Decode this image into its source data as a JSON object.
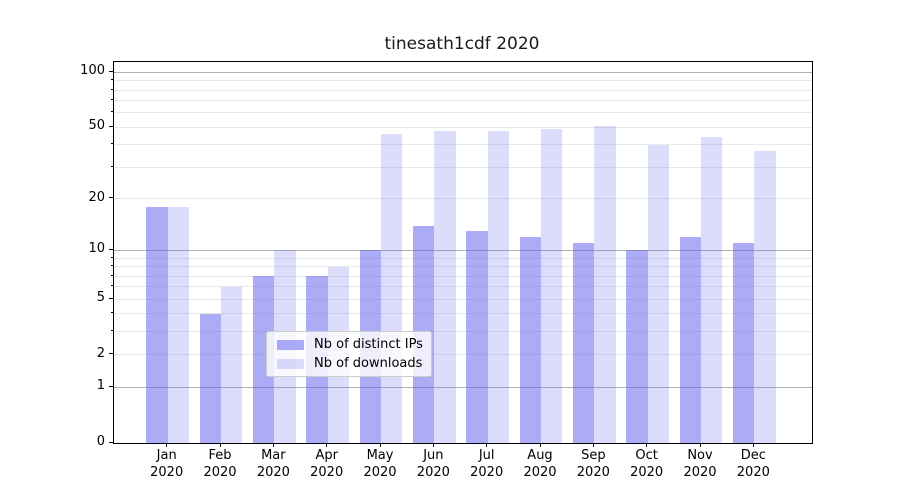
{
  "chart_data": {
    "type": "bar",
    "title": "tinesath1cdf 2020",
    "x": [
      "Jan 2020",
      "Feb 2020",
      "Mar 2020",
      "Apr 2020",
      "May 2020",
      "Jun 2020",
      "Jul 2020",
      "Aug 2020",
      "Sep 2020",
      "Oct 2020",
      "Nov 2020",
      "Dec 2020"
    ],
    "series": [
      {
        "name": "Nb of distinct IPs",
        "color": "rgba(102,102,238,0.55)",
        "values": [
          18,
          4,
          7,
          7,
          10,
          14,
          13,
          12,
          11,
          10,
          12,
          11
        ]
      },
      {
        "name": "Nb of downloads",
        "color": "rgba(102,102,238,0.23)",
        "values": [
          18,
          6,
          10,
          8,
          46,
          48,
          48,
          49,
          51,
          40,
          44,
          37
        ]
      }
    ],
    "y_scale": "log1p",
    "ylim": [
      0,
      114
    ],
    "yticks": [
      100,
      50,
      20,
      10,
      5,
      2,
      1,
      0
    ],
    "grid": {
      "major": [
        1,
        10,
        100
      ],
      "minor": [
        2,
        3,
        4,
        5,
        6,
        7,
        8,
        9,
        20,
        30,
        40,
        50,
        60,
        70,
        80,
        90
      ]
    },
    "legend_position": "lower center",
    "xlabel": "",
    "ylabel": ""
  },
  "colors": {
    "bar_distinct_ips": "rgba(102,102,238,0.55)",
    "bar_downloads": "rgba(102,102,238,0.23)",
    "grid_major": "#b0b0b0",
    "grid_minor": "#e8e8e8",
    "axis": "#000000",
    "legend_border": "#cccccc"
  }
}
